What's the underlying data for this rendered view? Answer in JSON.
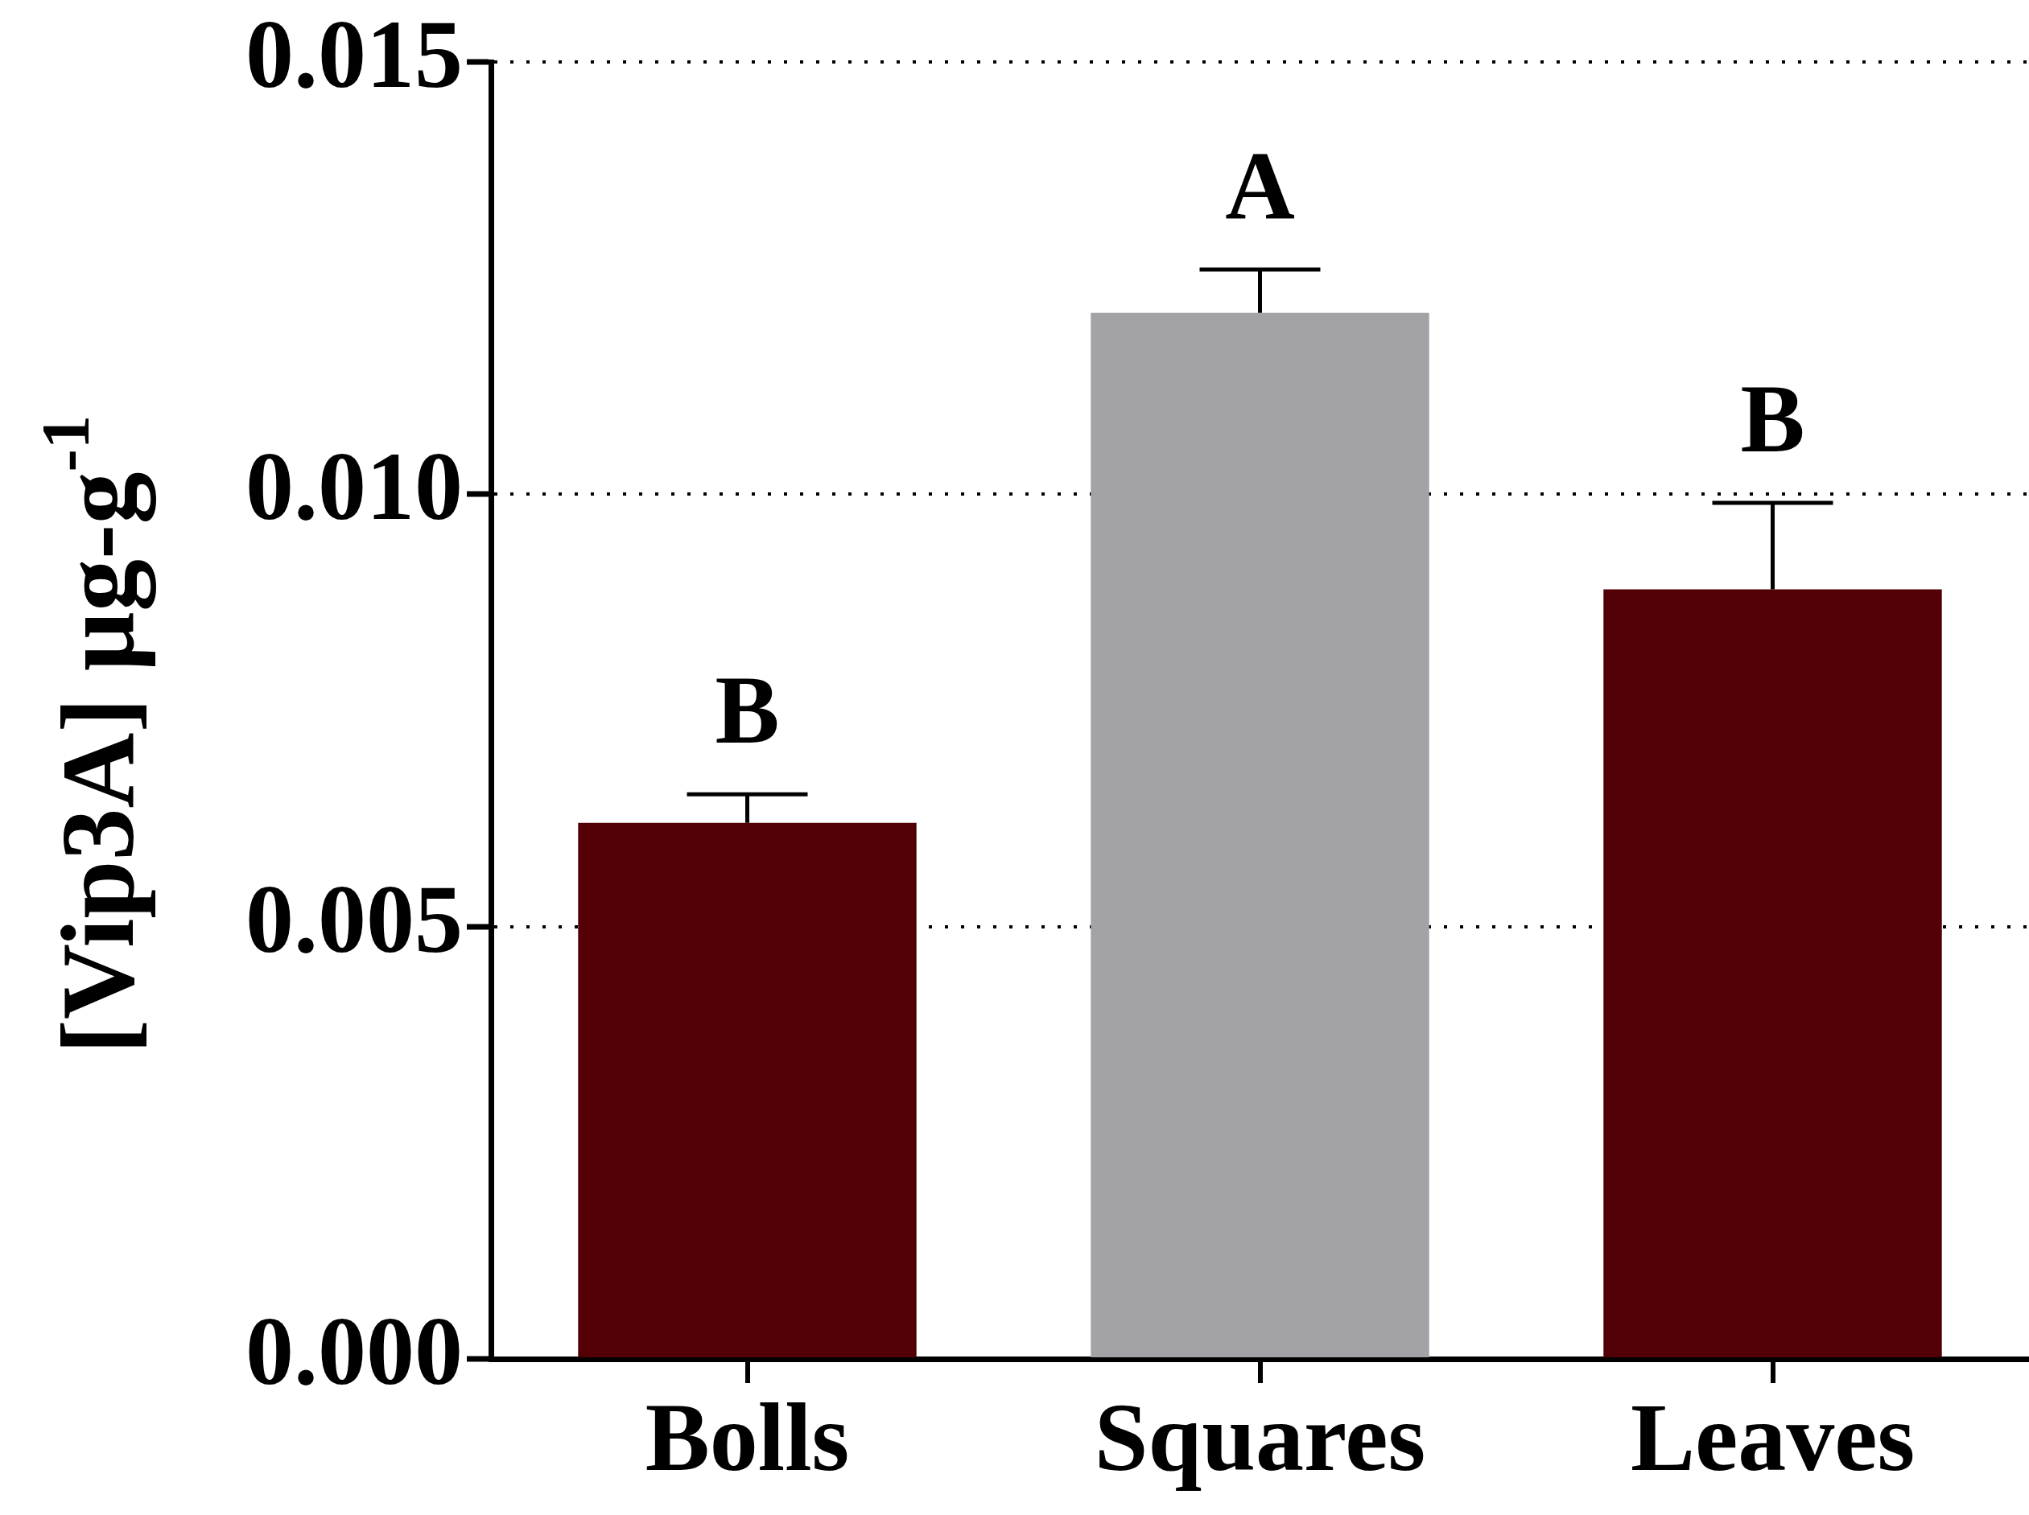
{
  "chart_data": {
    "type": "bar",
    "ylabel": "[Vip3A] µg-g$^{-1}$",
    "categories": [
      "Bolls",
      "Squares",
      "Leaves"
    ],
    "values": [
      0.0062,
      0.0121,
      0.0089
    ],
    "colors": [
      "#520005",
      "#a3a2a7",
      "#520005"
    ],
    "errors": [
      0.00033,
      0.0005,
      0.001
    ],
    "ylim": [
      0,
      0.015
    ],
    "yticks": [
      {
        "value": 0,
        "label": "0.000"
      },
      {
        "value": 0.005,
        "label": "0.005"
      },
      {
        "value": 0.01,
        "label": "0.010"
      },
      0.015
    ],
    "grid": "y",
    "annotations": [
      {
        "text": "B",
        "x": "Bolls",
        "y": 0.00653
      },
      {
        "text": "A",
        "x": "Squares",
        "y": 0.0126
      },
      {
        "text": "B",
        "x": "Leaves",
        "y": 0.0099
      }
    ]
  }
}
